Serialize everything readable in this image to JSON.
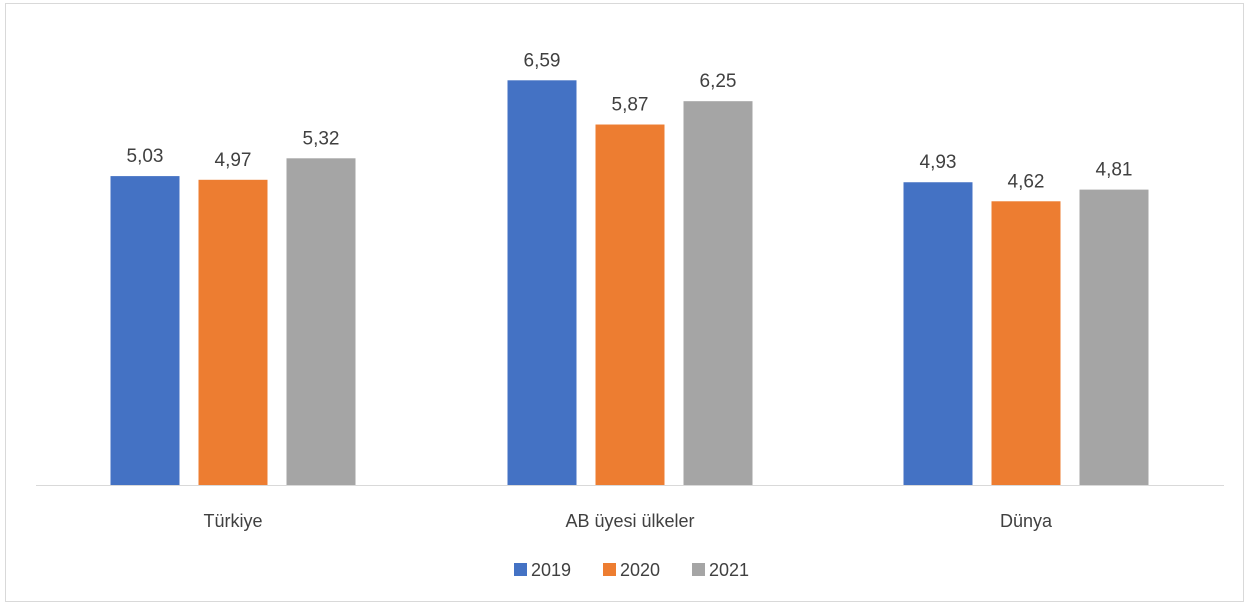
{
  "chart_data": {
    "type": "bar",
    "categories": [
      "Türkiye",
      "AB üyesi ülkeler",
      "Dünya"
    ],
    "series": [
      {
        "name": "2019",
        "values": [
          5.03,
          6.59,
          4.93
        ],
        "labels": [
          "5,03",
          "6,59",
          "4,93"
        ],
        "color": "#4472c4"
      },
      {
        "name": "2020",
        "values": [
          4.97,
          5.87,
          4.62
        ],
        "labels": [
          "4,97",
          "5,87",
          "4,62"
        ],
        "color": "#ed7d31"
      },
      {
        "name": "2021",
        "values": [
          5.32,
          6.25,
          4.81
        ],
        "labels": [
          "5,32",
          "6,25",
          "4,81"
        ],
        "color": "#a5a5a5"
      }
    ],
    "ylim": [
      0,
      7.8
    ],
    "grid": false,
    "legend_position": "bottom"
  }
}
